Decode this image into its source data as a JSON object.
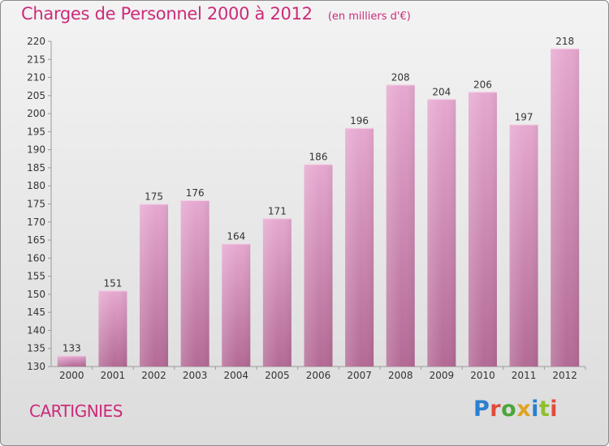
{
  "header": {
    "title": "Charges de Personnel 2000 à 2012",
    "subtitle": "(en milliers d'€)"
  },
  "footer": {
    "commune": "CARTIGNIES",
    "logo_text": "Proxiti"
  },
  "colors": {
    "bar_light": "#e6a8d0",
    "bar_dark": "#b36a95",
    "text_accent": "#cc2a7a",
    "axis_text": "#333333"
  },
  "chart_data": {
    "type": "bar",
    "title": "Charges de Personnel 2000 à 2012",
    "subtitle": "(en milliers d'€)",
    "xlabel": "",
    "ylabel": "",
    "categories": [
      "2000",
      "2001",
      "2002",
      "2003",
      "2004",
      "2005",
      "2006",
      "2007",
      "2008",
      "2009",
      "2010",
      "2011",
      "2012"
    ],
    "values": [
      133,
      151,
      175,
      176,
      164,
      171,
      186,
      196,
      208,
      204,
      206,
      197,
      218
    ],
    "ylim": [
      130,
      220
    ],
    "yticks": [
      130,
      135,
      140,
      145,
      150,
      155,
      160,
      165,
      170,
      175,
      180,
      185,
      190,
      195,
      200,
      205,
      210,
      215,
      220
    ],
    "grid": false,
    "legend": "none"
  }
}
